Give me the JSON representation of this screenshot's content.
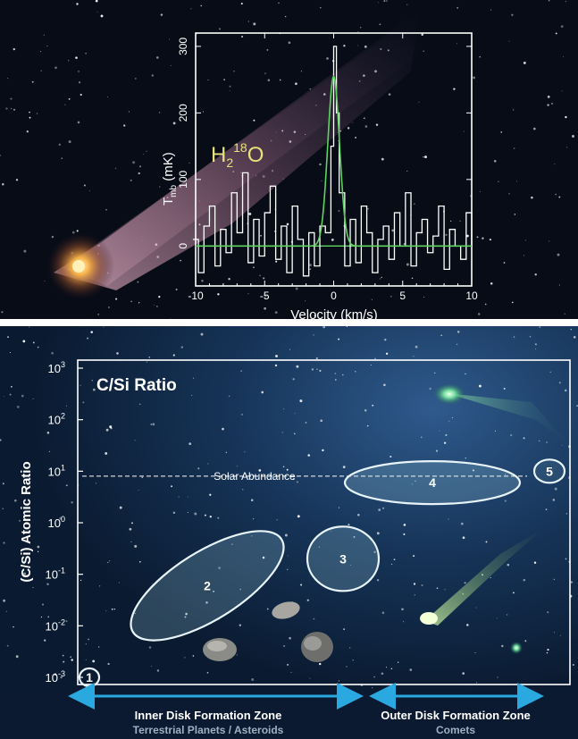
{
  "top_panel": {
    "species_label": {
      "base": "H",
      "sub": "2",
      "sup": "18",
      "tail": "O"
    }
  },
  "bottom_panel": {
    "title": "C/Si Ratio",
    "solar_label": "Solar Abundance",
    "inner_zone": {
      "title": "Inner Disk Formation Zone",
      "subtitle": "Terrestrial Planets / Asteroids"
    },
    "outer_zone": {
      "title": "Outer Disk Formation Zone",
      "subtitle": "Comets"
    }
  },
  "colors": {
    "spectrum_fit": "#5fd35f",
    "species_label": "#e8e27a",
    "arrow": "#2aa8e0",
    "frame": "#ffffff"
  },
  "chart_data": [
    {
      "type": "line",
      "xlabel": "Velocity (km/s)",
      "ylabel": {
        "base": "T",
        "sub": "mb",
        "tail": " (mK)"
      },
      "xlim": [
        -10,
        10
      ],
      "ylim": [
        -60,
        320
      ],
      "xticks": [
        -10,
        -5,
        0,
        5,
        10
      ],
      "yticks": [
        0,
        100,
        200,
        300
      ],
      "series": [
        {
          "style": "histogram",
          "x": [
            -10.2,
            -9.8,
            -9.4,
            -9.0,
            -8.6,
            -8.2,
            -7.8,
            -7.4,
            -7.0,
            -6.6,
            -6.2,
            -5.8,
            -5.4,
            -5.0,
            -4.6,
            -4.2,
            -3.8,
            -3.4,
            -3.0,
            -2.6,
            -2.2,
            -1.8,
            -1.4,
            -1.0,
            -0.6,
            -0.2,
            0.0,
            0.2,
            0.4,
            0.8,
            1.2,
            1.6,
            2.0,
            2.4,
            2.8,
            3.2,
            3.6,
            4.0,
            4.4,
            4.8,
            5.2,
            5.6,
            6.0,
            6.4,
            6.8,
            7.2,
            7.6,
            8.0,
            8.4,
            8.8,
            9.2,
            9.6,
            10.0
          ],
          "y": [
            10,
            -40,
            30,
            60,
            -30,
            25,
            -10,
            80,
            20,
            110,
            -25,
            40,
            -15,
            50,
            90,
            -20,
            30,
            -40,
            60,
            10,
            -45,
            20,
            -30,
            30,
            20,
            150,
            300,
            200,
            80,
            -30,
            40,
            -25,
            60,
            20,
            -40,
            10,
            30,
            -20,
            50,
            0,
            80,
            -30,
            20,
            40,
            -10,
            15,
            60,
            -35,
            25,
            0,
            -20,
            50,
            0
          ]
        },
        {
          "style": "gaussian_fit",
          "peak": 255,
          "center": 0.0,
          "fwhm": 1.0
        }
      ]
    },
    {
      "type": "scatter",
      "ylabel": "(C/Si) Atomic Ratio",
      "yscale": "log",
      "ylim": [
        0.0008,
        1200
      ],
      "yticks": [
        "10^3",
        "10^2",
        "10^1",
        "10^0",
        "10^-1",
        "10^-2",
        "10^-3"
      ],
      "solar_abundance": 8,
      "regions": [
        {
          "label": "1",
          "y_center": 0.001
        },
        {
          "label": "2",
          "y_center": 0.06
        },
        {
          "label": "3",
          "y_center": 0.2
        },
        {
          "label": "4",
          "y_center": 6
        },
        {
          "label": "5",
          "y_center": 10
        }
      ]
    }
  ]
}
